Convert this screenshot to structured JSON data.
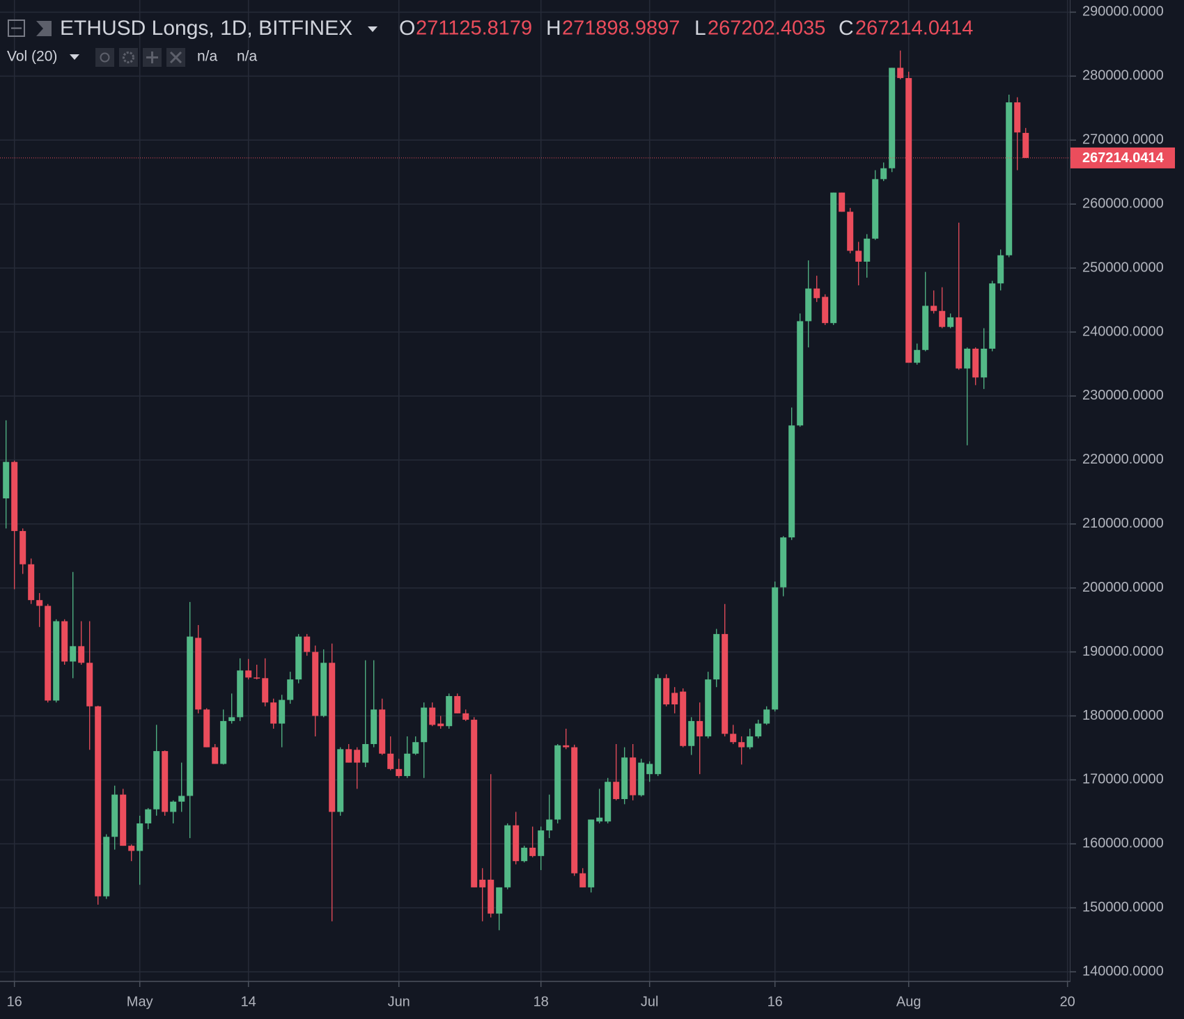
{
  "chart_data": {
    "type": "candlestick",
    "title": "ETHUSD Longs, 1D, BITFINEX",
    "ohlc_labels": [
      "O",
      "H",
      "L",
      "C"
    ],
    "indicator": {
      "name": "Vol (20)",
      "values": [
        "n/a",
        "n/a"
      ]
    },
    "categories": [
      null,
      "16",
      null,
      null,
      null,
      null,
      null,
      null,
      null,
      null,
      null,
      null,
      null,
      null,
      null,
      null,
      "May",
      null,
      null,
      null,
      null,
      null,
      null,
      null,
      null,
      null,
      null,
      null,
      null,
      "14",
      null,
      null,
      null,
      null,
      null,
      null,
      null,
      null,
      null,
      null,
      null,
      null,
      null,
      null,
      null,
      null,
      null,
      "Jun",
      null,
      null,
      null,
      null,
      null,
      null,
      null,
      null,
      null,
      null,
      null,
      null,
      null,
      null,
      null,
      null,
      "18",
      null,
      null,
      null,
      null,
      null,
      null,
      null,
      null,
      null,
      null,
      null,
      null,
      "Jul",
      null,
      null,
      null,
      null,
      null,
      null,
      null,
      null,
      null,
      null,
      null,
      null,
      null,
      null,
      "16",
      null,
      null,
      null,
      null,
      null,
      null,
      null,
      null,
      null,
      null,
      null,
      null,
      null,
      null,
      null,
      "Aug",
      null,
      null,
      null,
      null,
      null,
      null,
      null,
      null,
      null,
      null,
      null,
      null,
      null,
      null,
      null,
      null,
      null,
      null,
      "20"
    ],
    "open": [
      214000,
      219700,
      208900,
      203700,
      198100,
      197200,
      182400,
      194800,
      188500,
      190900,
      188300,
      181500,
      151800,
      161100,
      167700,
      159700,
      158900,
      163200,
      165400,
      174500,
      165000,
      166600,
      167500,
      192200,
      181000,
      175100,
      172500,
      179200,
      179800,
      187100,
      186000,
      185900,
      182100,
      178800,
      182500,
      185700,
      192400,
      190000,
      180000,
      188300,
      165000,
      174800,
      174700,
      172700,
      175600,
      181000,
      174100,
      171700,
      170600,
      174100,
      175900,
      181300,
      178800,
      178400,
      183100,
      180400,
      179400,
      154400,
      154400,
      149100,
      153200,
      162900,
      157300,
      159400,
      158100,
      162100,
      163800,
      175400,
      175100,
      155400,
      153200,
      163500,
      163500,
      169700,
      167000,
      173500,
      167600,
      170900,
      170900,
      185900,
      183600,
      183800,
      175300,
      179200,
      176800,
      185700,
      192800,
      177200,
      175900,
      175100,
      176800,
      178800,
      181000,
      200100,
      207900,
      225400,
      241700,
      246800,
      245500,
      241400,
      261800,
      258800,
      252700,
      251000,
      254600,
      263900,
      265600,
      281300,
      279700,
      235200,
      237200,
      244100,
      243300,
      240800,
      242300,
      234300,
      237400,
      232900,
      237400,
      247600,
      252000,
      275900,
      271125.8179,
      null,
      null,
      null,
      null,
      null
    ],
    "high": [
      226200,
      219900,
      209300,
      204600,
      199200,
      197500,
      195100,
      195100,
      202500,
      194800,
      194800,
      181600,
      161500,
      169100,
      168600,
      159900,
      164400,
      165600,
      178600,
      174600,
      166800,
      172700,
      197800,
      194200,
      181200,
      175600,
      181000,
      183500,
      189000,
      188900,
      188000,
      189000,
      182700,
      183300,
      186900,
      192800,
      192800,
      191000,
      190400,
      191300,
      175100,
      175600,
      175100,
      188700,
      188700,
      182700,
      176800,
      173300,
      176800,
      176800,
      182100,
      182100,
      180000,
      183500,
      183500,
      181000,
      179800,
      156200,
      170900,
      153200,
      163200,
      165000,
      159700,
      162700,
      162700,
      167700,
      175600,
      178000,
      175500,
      156200,
      163800,
      168600,
      170300,
      175600,
      175100,
      175600,
      173300,
      172900,
      186500,
      186500,
      184500,
      184300,
      179800,
      182100,
      186900,
      193600,
      197500,
      178600,
      176800,
      178000,
      179400,
      181500,
      201000,
      208100,
      228200,
      242900,
      251200,
      248800,
      245900,
      261800,
      261800,
      259400,
      254100,
      255300,
      265300,
      266500,
      281300,
      284000,
      280700,
      238200,
      249400,
      246500,
      247000,
      242900,
      257100,
      237600,
      237600,
      240600,
      248000,
      252900,
      277100,
      276700,
      271898.9897,
      null,
      null,
      null,
      null,
      null
    ],
    "low": [
      209300,
      199800,
      202200,
      197500,
      193900,
      182100,
      182100,
      188000,
      185900,
      188000,
      174700,
      150500,
      151400,
      159100,
      159700,
      157300,
      153600,
      162300,
      164400,
      164400,
      163200,
      165000,
      160900,
      180400,
      175100,
      172500,
      172400,
      178800,
      179200,
      185700,
      185700,
      181500,
      178000,
      175100,
      181900,
      185100,
      189400,
      176800,
      179800,
      147900,
      164400,
      172700,
      168600,
      172000,
      175100,
      173900,
      171500,
      170300,
      170300,
      173900,
      170300,
      178400,
      178000,
      178000,
      180400,
      179200,
      153200,
      147900,
      148500,
      146500,
      152900,
      156800,
      157100,
      157900,
      155900,
      160900,
      163200,
      174800,
      155000,
      153200,
      152400,
      163200,
      163200,
      166800,
      166200,
      166800,
      167400,
      169700,
      170600,
      181500,
      180400,
      175100,
      173900,
      170900,
      176500,
      184500,
      176800,
      175600,
      172400,
      174800,
      176500,
      178600,
      180700,
      198700,
      207500,
      225200,
      237600,
      244700,
      241100,
      241100,
      258800,
      252300,
      247300,
      248500,
      254400,
      263600,
      265000,
      279500,
      235200,
      234900,
      237000,
      242900,
      240600,
      240600,
      234100,
      222300,
      231700,
      231100,
      237000,
      246500,
      251700,
      265300,
      267202.4035,
      null,
      null,
      null,
      null,
      null
    ],
    "close": [
      219700,
      208900,
      203700,
      198100,
      197200,
      182400,
      194800,
      188500,
      190900,
      188300,
      181500,
      151800,
      161100,
      167700,
      159700,
      158900,
      163200,
      165400,
      174500,
      165000,
      166600,
      167500,
      192400,
      181000,
      175100,
      172500,
      179200,
      179800,
      187100,
      186000,
      185900,
      182100,
      178800,
      182500,
      185700,
      192400,
      190000,
      180000,
      188300,
      165000,
      174800,
      172700,
      172700,
      175600,
      181000,
      174100,
      171700,
      170600,
      174100,
      175900,
      181300,
      178600,
      178400,
      183100,
      180400,
      179400,
      153200,
      153200,
      149100,
      153200,
      162900,
      157300,
      159400,
      158100,
      162100,
      163800,
      175400,
      175100,
      155400,
      153200,
      163800,
      164100,
      169700,
      167000,
      173500,
      167600,
      172700,
      172500,
      185900,
      181800,
      181800,
      175300,
      179200,
      176800,
      185700,
      192800,
      177200,
      175900,
      175100,
      176800,
      178800,
      181000,
      200100,
      207900,
      225400,
      241700,
      246800,
      245300,
      241400,
      261800,
      258800,
      252700,
      251000,
      254600,
      263900,
      265600,
      281300,
      279700,
      235200,
      237200,
      244100,
      243300,
      240800,
      242300,
      234300,
      237400,
      232900,
      237400,
      247600,
      252000,
      275900,
      271200,
      267214.0414,
      null,
      null,
      null,
      null,
      null
    ],
    "up_color": "#53b987",
    "down_color": "#eb4d5c",
    "ylim": [
      138500,
      291900
    ],
    "yticks": [
      {
        "value": 140000,
        "label": "140000.0000"
      },
      {
        "value": 150000,
        "label": "150000.0000"
      },
      {
        "value": 160000,
        "label": "160000.0000"
      },
      {
        "value": 170000,
        "label": "170000.0000"
      },
      {
        "value": 180000,
        "label": "180000.0000"
      },
      {
        "value": 190000,
        "label": "190000.0000"
      },
      {
        "value": 200000,
        "label": "200000.0000"
      },
      {
        "value": 210000,
        "label": "210000.0000"
      },
      {
        "value": 220000,
        "label": "220000.0000"
      },
      {
        "value": 230000,
        "label": "230000.0000"
      },
      {
        "value": 240000,
        "label": "240000.0000"
      },
      {
        "value": 250000,
        "label": "250000.0000"
      },
      {
        "value": 260000,
        "label": "260000.0000"
      },
      {
        "value": 270000,
        "label": "270000.0000"
      },
      {
        "value": 280000,
        "label": "280000.0000"
      },
      {
        "value": 290000,
        "label": "290000.0000"
      }
    ],
    "grid": true,
    "last_price_line": true
  }
}
